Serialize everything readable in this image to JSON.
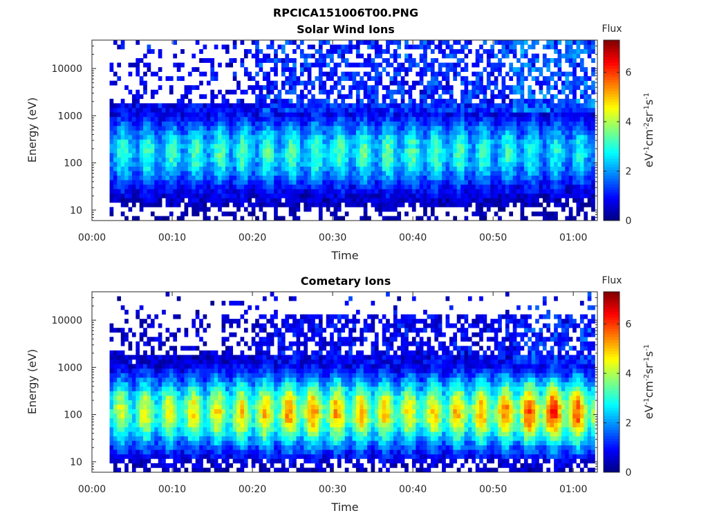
{
  "figure": {
    "title": "RPCICA151006T00.PNG"
  },
  "colorbar": {
    "label": "Flux",
    "unit_parts": [
      "eV",
      "-1",
      "cm",
      "-2",
      "sr",
      "-1",
      "s",
      "-1"
    ],
    "range": [
      0,
      7.3
    ],
    "ticks": [
      "0",
      "2",
      "4",
      "6"
    ],
    "colormap": "jet"
  },
  "chart_data": [
    {
      "type": "heatmap",
      "title": "Solar Wind Ions",
      "xlabel": "Time",
      "ylabel": "Energy (eV)",
      "x_ticks": [
        "00:00",
        "00:10",
        "00:20",
        "00:30",
        "00:40",
        "00:50",
        "01:00"
      ],
      "x_range_minutes": [
        0,
        63
      ],
      "data_start_minutes": 2.2,
      "data_end_minutes": 62.7,
      "y_scale": "log",
      "y_ticks": [
        "10",
        "100",
        "1000",
        "10000"
      ],
      "y_range_eV": [
        6,
        40000
      ],
      "z_label": "Flux",
      "z_range": [
        0,
        7.3
      ],
      "intensity_envelope": [
        [
          0,
          3.1
        ],
        [
          20,
          3.4
        ],
        [
          40,
          3.5
        ],
        [
          55,
          3.0
        ],
        [
          63,
          2.9
        ]
      ],
      "peak_energy_eV": 150
    },
    {
      "type": "heatmap",
      "title": "Cometary Ions",
      "xlabel": "Time",
      "ylabel": "Energy (eV)",
      "x_ticks": [
        "00:00",
        "00:10",
        "00:20",
        "00:30",
        "00:40",
        "00:50",
        "01:00"
      ],
      "x_range_minutes": [
        0,
        63
      ],
      "data_start_minutes": 2.2,
      "data_end_minutes": 62.7,
      "y_scale": "log",
      "y_ticks": [
        "10",
        "100",
        "1000",
        "10000"
      ],
      "y_range_eV": [
        6,
        40000
      ],
      "z_label": "Flux",
      "z_range": [
        0,
        7.3
      ],
      "intensity_envelope": [
        [
          0,
          4.3
        ],
        [
          20,
          5.0
        ],
        [
          26,
          5.6
        ],
        [
          40,
          4.8
        ],
        [
          52,
          5.6
        ],
        [
          58,
          6.3
        ],
        [
          63,
          5.4
        ]
      ],
      "peak_energy_eV": 100
    }
  ]
}
